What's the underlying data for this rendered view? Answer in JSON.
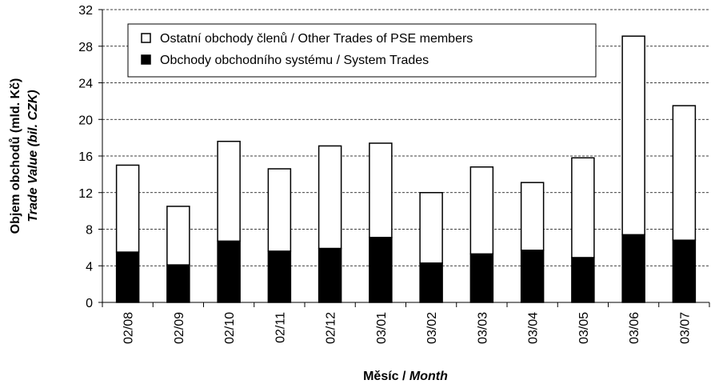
{
  "chart_data": {
    "type": "stacked_bar",
    "y_label": "Objem obchodů (mld. Kč)",
    "y_label_2": "Trade Value (bil. CZK)",
    "x_label": "Měsíc /",
    "x_label_2": "Month",
    "categories": [
      "02/08",
      "02/09",
      "02/10",
      "02/11",
      "02/12",
      "03/01",
      "03/02",
      "03/03",
      "03/04",
      "03/05",
      "03/06",
      "03/07"
    ],
    "series": [
      {
        "name": "Obchody obchodního systému / System Trades",
        "color": "#000000",
        "values": [
          5.5,
          4.1,
          6.7,
          5.6,
          5.9,
          7.1,
          4.3,
          5.3,
          5.7,
          4.9,
          7.4,
          6.8
        ]
      },
      {
        "name": "Ostatní obchody členů / Other Trades of PSE members",
        "color": "#ffffff",
        "values": [
          9.5,
          6.4,
          10.9,
          9.0,
          11.2,
          10.3,
          7.7,
          9.5,
          7.4,
          10.9,
          21.7,
          14.7
        ]
      }
    ],
    "ylim": [
      0,
      32
    ],
    "yticks": [
      0,
      4,
      8,
      12,
      16,
      20,
      24,
      28,
      32
    ],
    "grid": true
  }
}
